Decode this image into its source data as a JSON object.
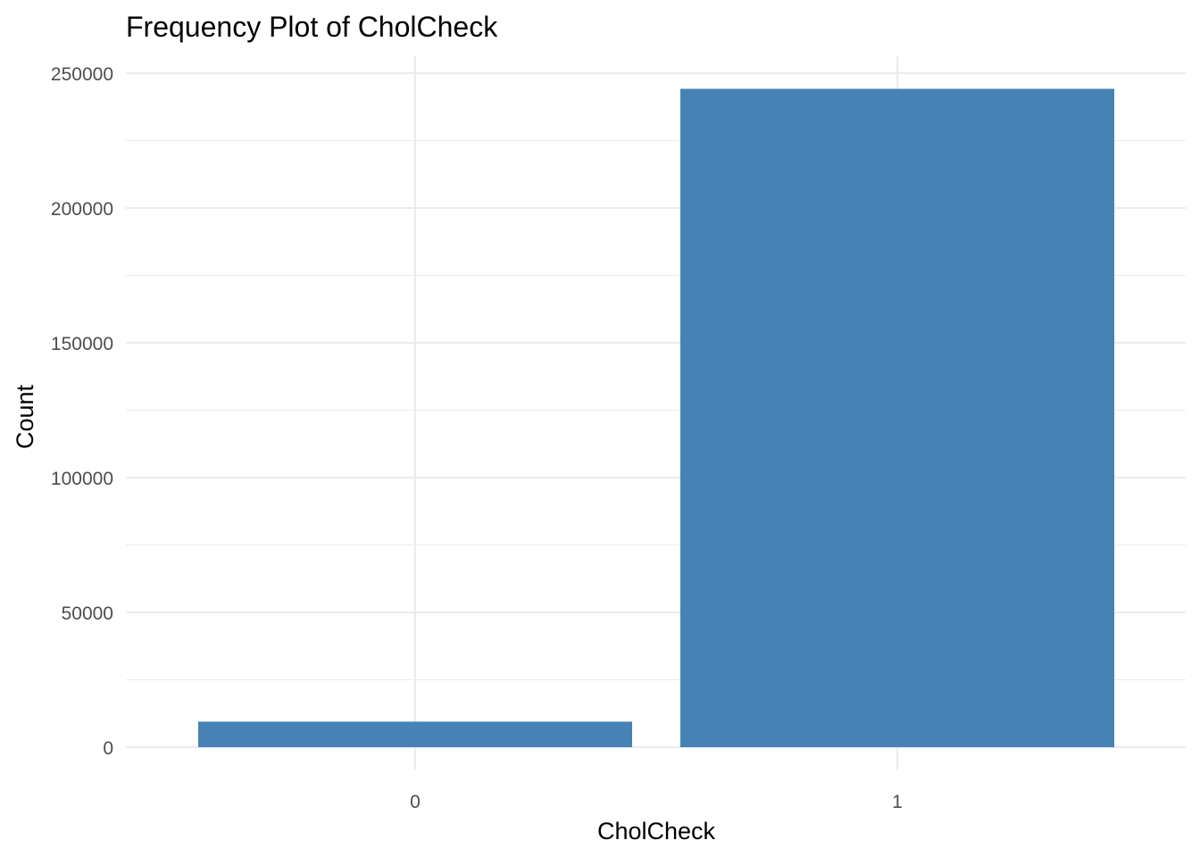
{
  "chart_data": {
    "type": "bar",
    "title": "Frequency Plot of CholCheck",
    "xlabel": "CholCheck",
    "ylabel": "Count",
    "categories": [
      "0",
      "1"
    ],
    "values": [
      9470,
      244210
    ],
    "ylim": [
      0,
      258000
    ],
    "yticks": [
      0,
      50000,
      100000,
      150000,
      200000,
      250000
    ],
    "ytick_labels": [
      "0",
      "50000",
      "100000",
      "150000",
      "200000",
      "250000"
    ],
    "grid": true,
    "legend": "none",
    "bar_color": "#4682B4"
  }
}
